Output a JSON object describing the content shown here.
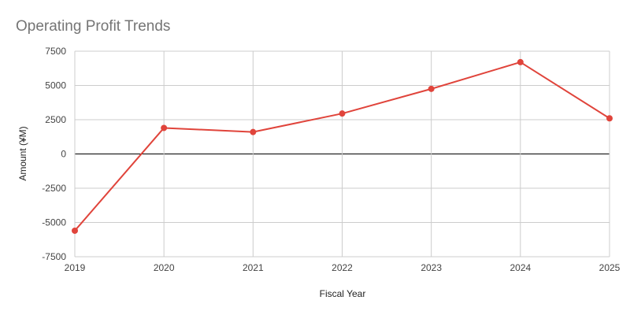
{
  "chart_data": {
    "type": "line",
    "title": "Operating Profit Trends",
    "xlabel": "Fiscal Year",
    "ylabel": "Amount (¥M)",
    "categories": [
      "2019",
      "2020",
      "2021",
      "2022",
      "2023",
      "2024",
      "2025"
    ],
    "series": [
      {
        "values": [
          -5600,
          1900,
          1600,
          2950,
          4750,
          6700,
          2600
        ],
        "color": "#e0443b"
      }
    ],
    "ylim": [
      -7500,
      7500
    ],
    "yticks": [
      7500,
      5000,
      2500,
      0,
      -2500,
      -5000,
      -7500
    ],
    "ytick_labels": [
      "7500",
      "5000",
      "2500",
      "0",
      "-2500",
      "-5000",
      "-7500"
    ],
    "grid": true,
    "zero_line_color": "#000000",
    "grid_color": "#cccccc",
    "legend": "none"
  }
}
